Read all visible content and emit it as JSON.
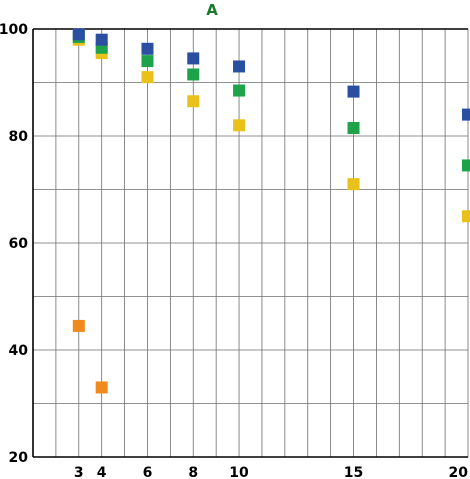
{
  "chart_data": {
    "type": "scatter",
    "title": "A",
    "xlabel": "",
    "ylabel": "",
    "xlim": [
      1,
      20
    ],
    "ylim": [
      20,
      100
    ],
    "x_ticks": [
      3,
      4,
      6,
      8,
      10,
      15,
      20
    ],
    "y_ticks": [
      20,
      40,
      60,
      80,
      100
    ],
    "grid": true,
    "legend": "none",
    "title_color": "#1a7a2a",
    "series": [
      {
        "color": "#f08a1c",
        "x": [
          3,
          4
        ],
        "y": [
          44.5,
          33
        ]
      },
      {
        "color": "#e8c21a",
        "x": [
          3,
          4,
          6,
          8,
          10,
          15,
          20
        ],
        "y": [
          98,
          95.5,
          91,
          86.5,
          82,
          71,
          65
        ]
      },
      {
        "color": "#1fa34a",
        "x": [
          3,
          4,
          6,
          8,
          10,
          15,
          20
        ],
        "y": [
          98.5,
          96.5,
          94,
          91.5,
          88.5,
          81.5,
          74.5
        ]
      },
      {
        "color": "#2a4ea0",
        "x": [
          3,
          4,
          6,
          8,
          10,
          15,
          20
        ],
        "y": [
          99,
          98,
          96.3,
          94.5,
          93,
          88.3,
          84
        ]
      }
    ]
  }
}
